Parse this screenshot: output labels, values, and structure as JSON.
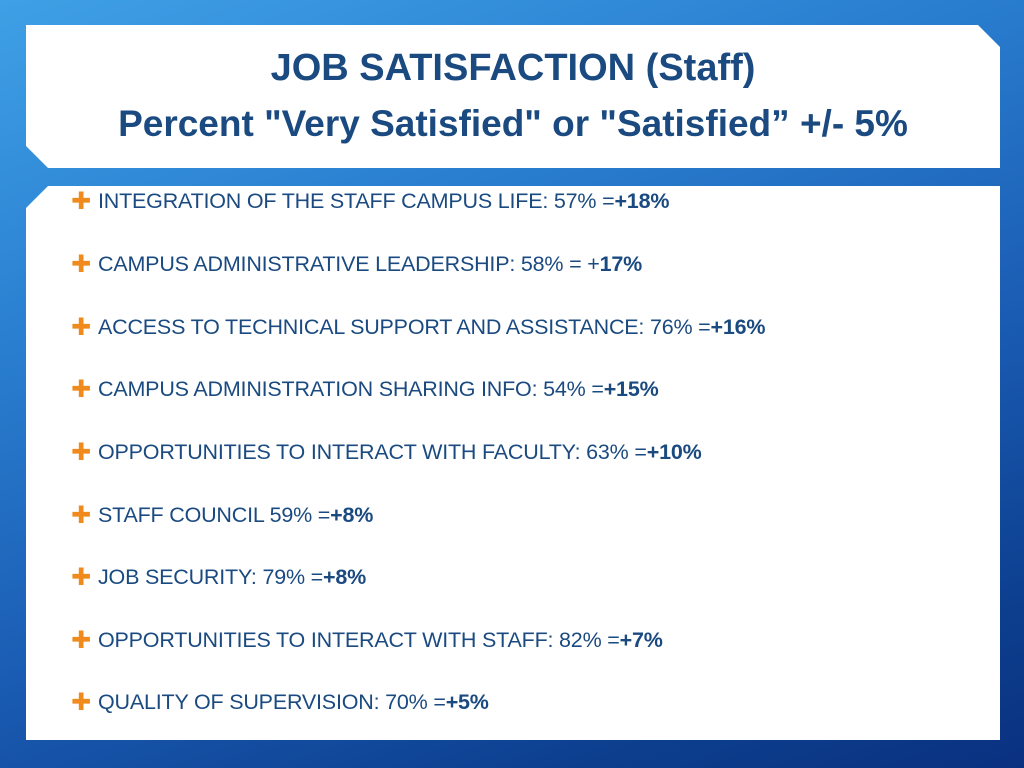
{
  "slide": {
    "title_line1": "JOB SATISFACTION  (Staff)",
    "title_line2": "Percent \"Very Satisfied\" or \"Satisfied” +/- 5%",
    "bullet_glyph": "✚",
    "colors": {
      "title_text": "#1a4a80",
      "bullet": "#f08a1c",
      "item_text": "#1a4a80",
      "background_top": "#3fa0e6",
      "background_bottom": "#0a3180"
    },
    "items": [
      {
        "label": "INTEGRATION OF THE STAFF CAMPUS LIFE: 57% = ",
        "change": "+18%"
      },
      {
        "label": "CAMPUS ADMINISTRATIVE LEADERSHIP: 58% = +",
        "change": "17%"
      },
      {
        "label": "ACCESS TO TECHNICAL SUPPORT AND ASSISTANCE: 76% = ",
        "change": "+16%"
      },
      {
        "label": "CAMPUS ADMINISTRATION SHARING INFO:  54% = ",
        "change": "+15%"
      },
      {
        "label": "OPPORTUNITIES TO INTERACT WITH FACULTY: 63% = ",
        "change": "+10%"
      },
      {
        "label": "STAFF COUNCIL 59% = ",
        "change": "+8%"
      },
      {
        "label": "JOB SECURITY: 79% = ",
        "change": "+8%"
      },
      {
        "label": "OPPORTUNITIES TO INTERACT WITH STAFF: 82% = ",
        "change": "+7%"
      },
      {
        "label": "QUALITY OF SUPERVISION: 70% = ",
        "change": "+5%"
      }
    ]
  }
}
